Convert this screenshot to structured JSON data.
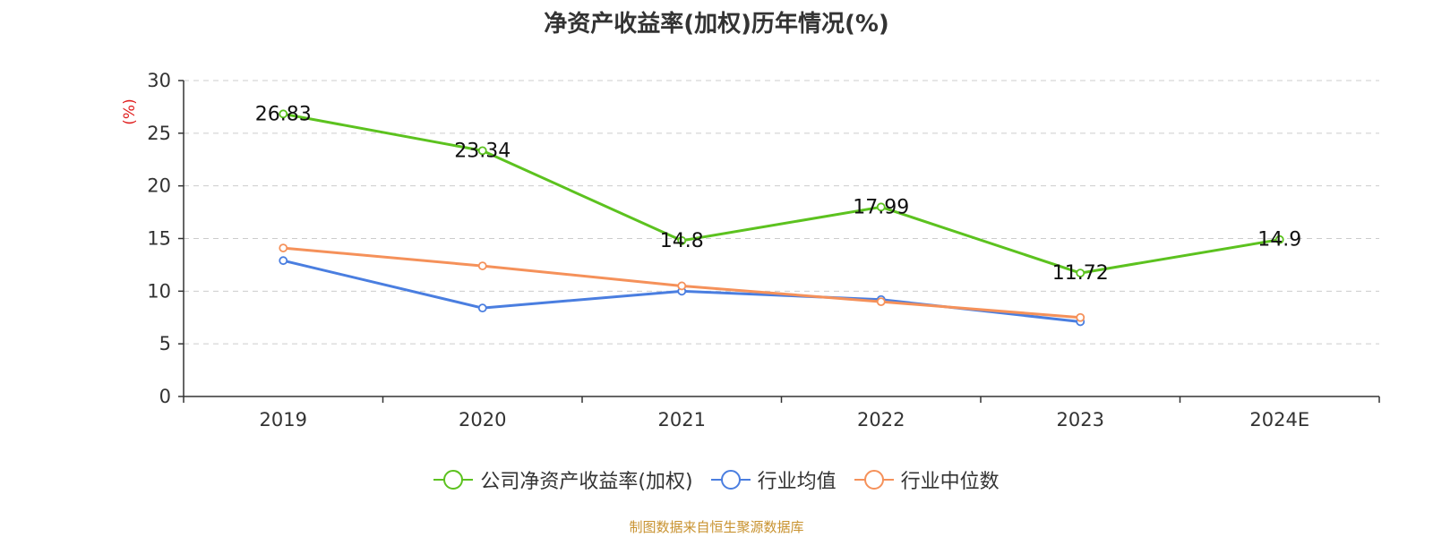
{
  "title": "净资产收益率(加权)历年情况(%)",
  "source_note": "制图数据来自恒生聚源数据库",
  "chart_data": {
    "type": "line",
    "categories": [
      "2019",
      "2020",
      "2021",
      "2022",
      "2023",
      "2024E"
    ],
    "yunit": "(%)",
    "ylim": [
      0,
      30
    ],
    "yticks": [
      0,
      5,
      10,
      15,
      20,
      25,
      30
    ],
    "grid": true,
    "legend_position": "bottom",
    "series": [
      {
        "name": "公司净资产收益率(加权)",
        "color": "#5cc21f",
        "values": [
          26.83,
          23.34,
          14.8,
          17.99,
          11.72,
          14.9
        ],
        "labels": [
          "26.83",
          "23.34",
          "14.8",
          "17.99",
          "11.72",
          "14.9"
        ]
      },
      {
        "name": "行业均值",
        "color": "#4a7ee0",
        "values": [
          12.9,
          8.4,
          10.0,
          9.2,
          7.1,
          null
        ]
      },
      {
        "name": "行业中位数",
        "color": "#f5915a",
        "values": [
          14.1,
          12.4,
          10.5,
          9.0,
          7.5,
          null
        ]
      }
    ]
  }
}
